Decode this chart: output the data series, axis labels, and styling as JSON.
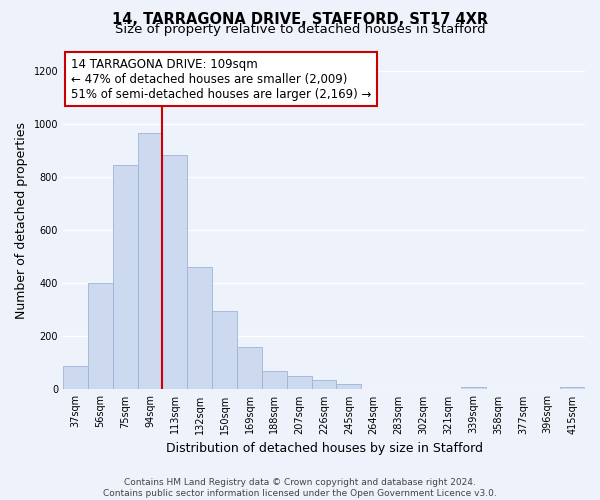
{
  "title": "14, TARRAGONA DRIVE, STAFFORD, ST17 4XR",
  "subtitle": "Size of property relative to detached houses in Stafford",
  "xlabel": "Distribution of detached houses by size in Stafford",
  "ylabel": "Number of detached properties",
  "bar_labels": [
    "37sqm",
    "56sqm",
    "75sqm",
    "94sqm",
    "113sqm",
    "132sqm",
    "150sqm",
    "169sqm",
    "188sqm",
    "207sqm",
    "226sqm",
    "245sqm",
    "264sqm",
    "283sqm",
    "302sqm",
    "321sqm",
    "339sqm",
    "358sqm",
    "377sqm",
    "396sqm",
    "415sqm"
  ],
  "bar_heights": [
    90,
    400,
    845,
    965,
    885,
    460,
    297,
    160,
    70,
    52,
    35,
    20,
    0,
    0,
    0,
    0,
    10,
    0,
    0,
    0,
    10
  ],
  "bar_color": "#ccd9ee",
  "bar_edge_color": "#9db4d8",
  "vline_color": "#cc0000",
  "annotation_line1": "14 TARRAGONA DRIVE: 109sqm",
  "annotation_line2": "← 47% of detached houses are smaller (2,009)",
  "annotation_line3": "51% of semi-detached houses are larger (2,169) →",
  "annotation_box_edgecolor": "#cc0000",
  "annotation_box_facecolor": "#ffffff",
  "ylim": [
    0,
    1270
  ],
  "yticks": [
    0,
    200,
    400,
    600,
    800,
    1000,
    1200
  ],
  "footer_line1": "Contains HM Land Registry data © Crown copyright and database right 2024.",
  "footer_line2": "Contains public sector information licensed under the Open Government Licence v3.0.",
  "background_color": "#eef2fa",
  "grid_color": "#ffffff",
  "title_fontsize": 10.5,
  "subtitle_fontsize": 9.5,
  "ylabel_fontsize": 9,
  "xlabel_fontsize": 9,
  "tick_fontsize": 7,
  "annotation_fontsize": 8.5,
  "footer_fontsize": 6.5
}
